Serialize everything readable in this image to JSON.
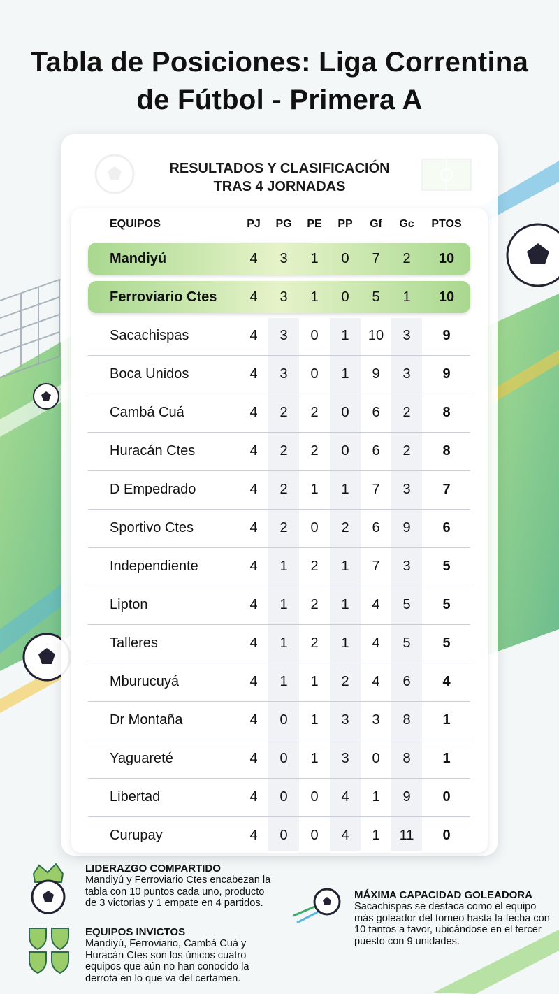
{
  "header": {
    "title": "Tabla de Posiciones: Liga Correntina de Fútbol - Primera A"
  },
  "card": {
    "heading_line1": "RESULTADOS Y CLASIFICACIÓN",
    "heading_line2": "TRAS 4 JORNADAS"
  },
  "table": {
    "columns": [
      "EQUIPOS",
      "PJ",
      "PG",
      "PE",
      "PP",
      "Gf",
      "Gc",
      "PTOS"
    ],
    "rows": [
      [
        "Mandiyú",
        4,
        3,
        1,
        0,
        7,
        2,
        10
      ],
      [
        "Ferroviario Ctes",
        4,
        3,
        1,
        0,
        5,
        1,
        10
      ],
      [
        "Sacachispas",
        4,
        3,
        0,
        1,
        10,
        3,
        9
      ],
      [
        "Boca Unidos",
        4,
        3,
        0,
        1,
        9,
        3,
        9
      ],
      [
        "Cambá Cuá",
        4,
        2,
        2,
        0,
        6,
        2,
        8
      ],
      [
        "Huracán Ctes",
        4,
        2,
        2,
        0,
        6,
        2,
        8
      ],
      [
        "D Empedrado",
        4,
        2,
        1,
        1,
        7,
        3,
        7
      ],
      [
        "Sportivo Ctes",
        4,
        2,
        0,
        2,
        6,
        9,
        6
      ],
      [
        "Independiente",
        4,
        1,
        2,
        1,
        7,
        3,
        5
      ],
      [
        "Lipton",
        4,
        1,
        2,
        1,
        4,
        5,
        5
      ],
      [
        "Talleres",
        4,
        1,
        2,
        1,
        4,
        5,
        5
      ],
      [
        "Mburucuyá",
        4,
        1,
        1,
        2,
        4,
        6,
        4
      ],
      [
        "Dr Montaña",
        4,
        0,
        1,
        3,
        3,
        8,
        1
      ],
      [
        "Yaguareté",
        4,
        0,
        1,
        3,
        0,
        8,
        1
      ],
      [
        "Libertad",
        4,
        0,
        0,
        4,
        1,
        9,
        0
      ],
      [
        "Curupay",
        4,
        0,
        0,
        4,
        1,
        11,
        0
      ]
    ]
  },
  "notes": [
    {
      "title": "LIDERAZGO COMPARTIDO",
      "text": "Mandiyú y Ferroviario Ctes encabezan la tabla con 10 puntos cada uno, producto de 3 victorias y 1 empate en 4 partidos."
    },
    {
      "title": "EQUIPOS INVICTOS",
      "text": "Mandiyú, Ferroviario, Cambá Cuá y Huracán Ctes son los únicos cuatro equipos que aún no han conocido la derrota en lo que va del certamen."
    },
    {
      "title": "MÁXIMA CAPACIDAD GOLEADORA",
      "text": "Sacachispas se destaca como el equipo más goleador del torneo hasta la fecha con 10 tantos a favor, ubicándose en el tercer puesto con 9 unidades."
    }
  ]
}
